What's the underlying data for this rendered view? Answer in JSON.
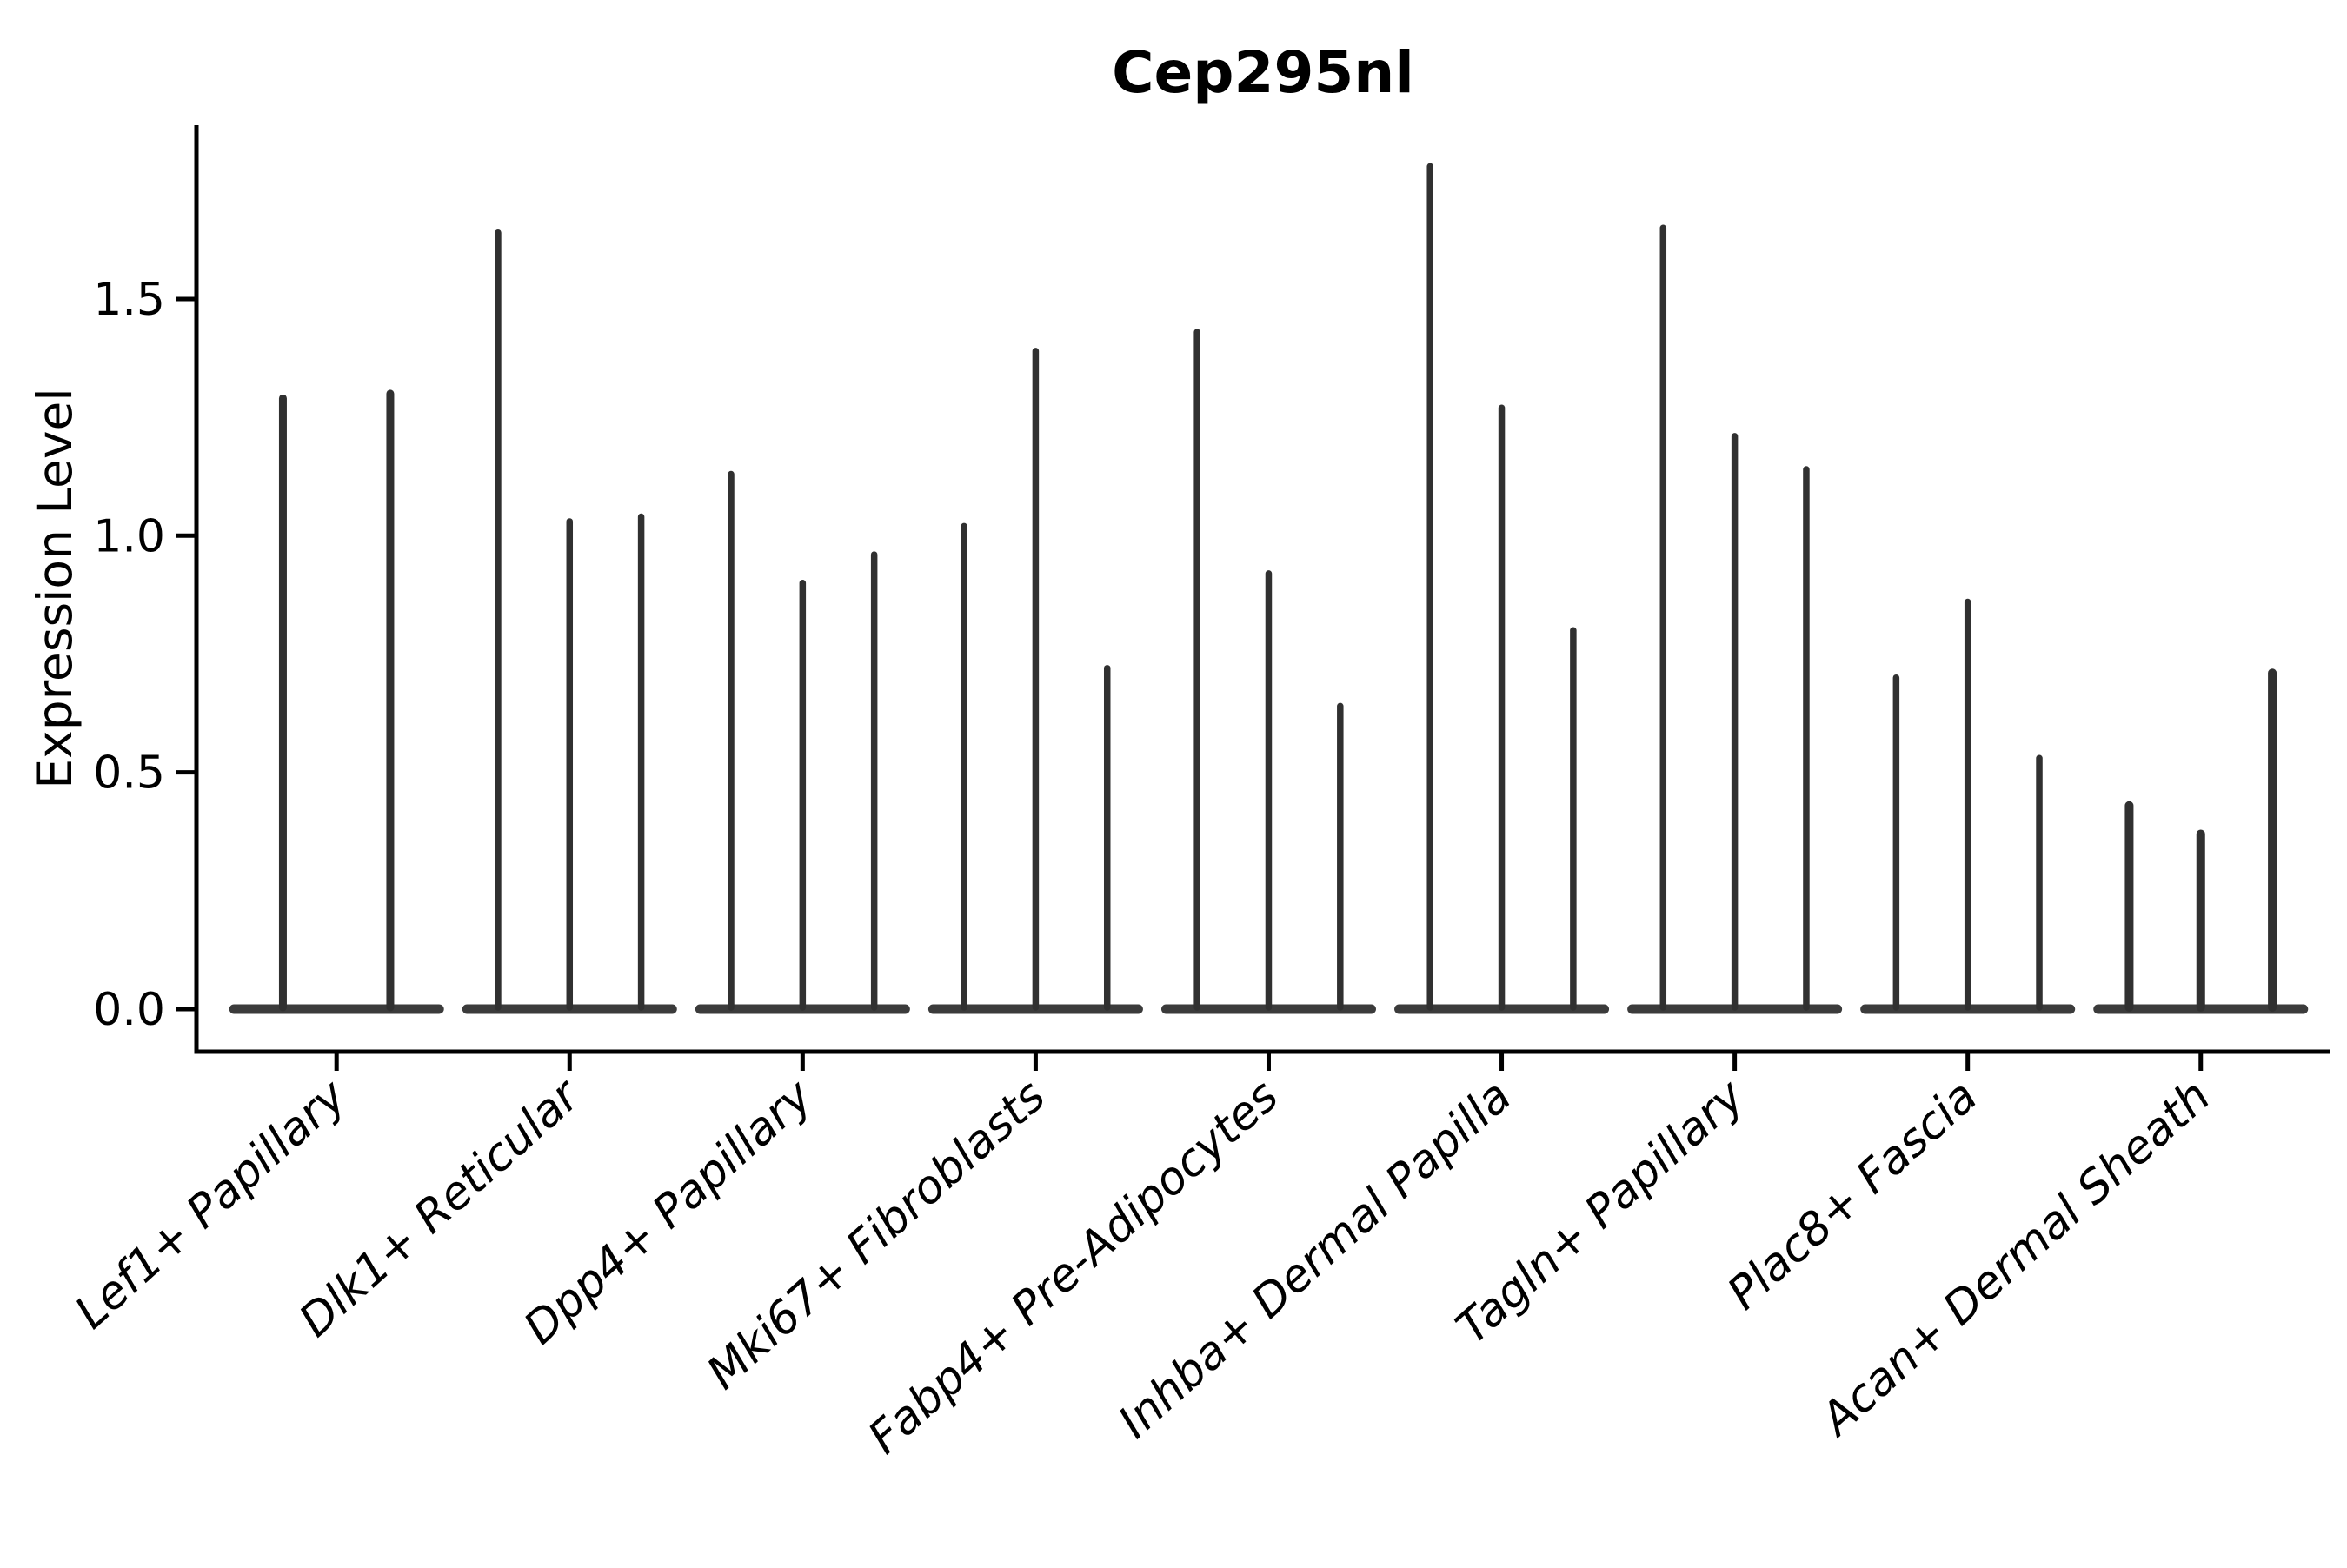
{
  "chart_data": {
    "type": "violin",
    "title": "Cep295nl",
    "xlabel": "",
    "ylabel": "Expression Level",
    "ylim": [
      -0.09,
      1.87
    ],
    "yticks": [
      0.0,
      0.5,
      1.0,
      1.5
    ],
    "ytick_labels": [
      "0.0",
      "0.5",
      "1.0",
      "1.5"
    ],
    "grid": false,
    "legend": false,
    "violin_color": "#303030",
    "axis_color": "#000000",
    "shape_note": "each violin is a hairline spike: density mass concentrated at 0 with a thin tail up to its maximum",
    "categories": [
      "Lef1+ Papillary",
      "Dlk1+ Reticular",
      "Dpp4+ Papillary",
      "Mki67+ Fibroblasts",
      "Fabp4+ Pre-Adipocytes",
      "Inhba+ Dermal Papilla",
      "Tagln+ Papillary",
      "Plac8+ Fascia",
      "Acan+ Dermal Sheath"
    ],
    "series": [
      {
        "name": "Lef1+ Papillary",
        "violin_max": [
          1.29,
          1.3
        ]
      },
      {
        "name": "Dlk1+ Reticular",
        "violin_max": [
          1.64,
          1.03,
          1.04
        ]
      },
      {
        "name": "Dpp4+ Papillary",
        "violin_max": [
          1.13,
          0.9,
          0.96
        ]
      },
      {
        "name": "Mki67+ Fibroblasts",
        "violin_max": [
          1.02,
          1.39,
          0.72
        ]
      },
      {
        "name": "Fabp4+ Pre-Adipocytes",
        "violin_max": [
          1.43,
          0.92,
          0.64
        ]
      },
      {
        "name": "Inhba+ Dermal Papilla",
        "violin_max": [
          1.78,
          1.27,
          0.8
        ]
      },
      {
        "name": "Tagln+ Papillary",
        "violin_max": [
          1.65,
          1.21,
          1.14
        ]
      },
      {
        "name": "Plac8+ Fascia",
        "violin_max": [
          0.7,
          0.86,
          0.53
        ]
      },
      {
        "name": "Acan+ Dermal Sheath",
        "violin_max": [
          0.43,
          0.37,
          0.71
        ]
      }
    ]
  }
}
